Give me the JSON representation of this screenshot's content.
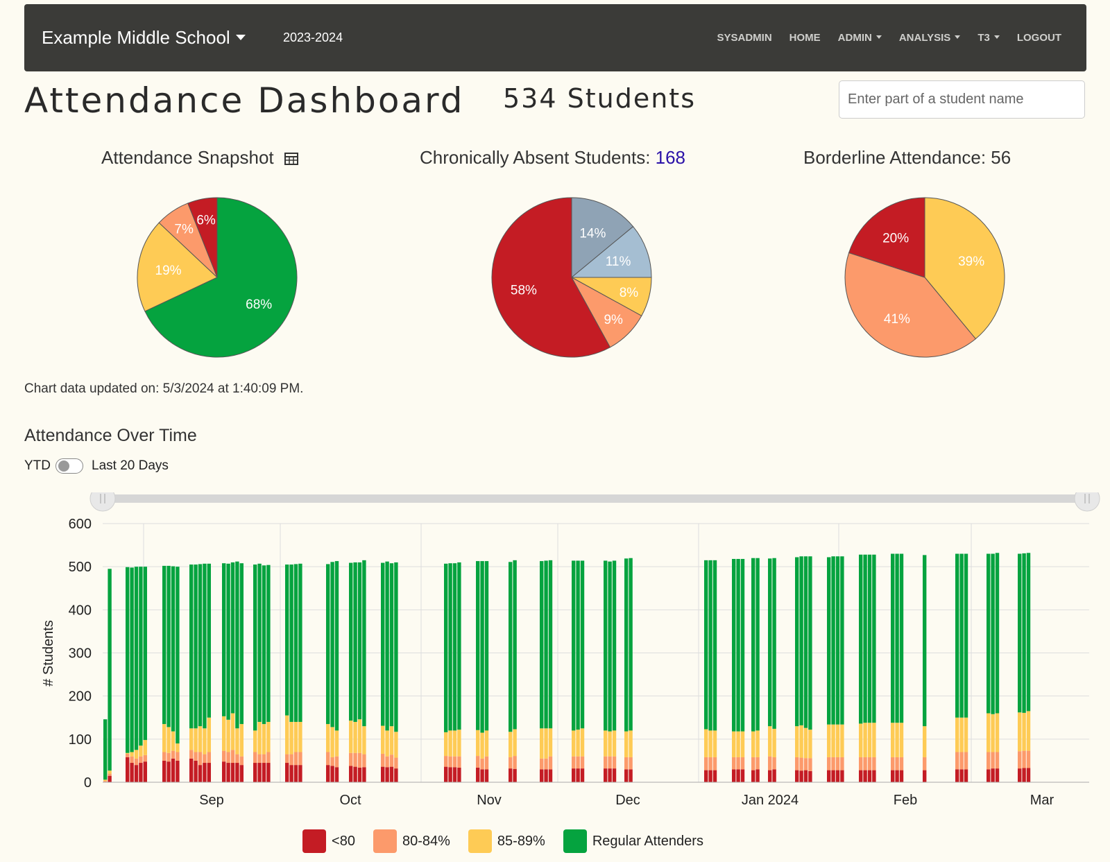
{
  "navbar": {
    "school": "Example Middle School",
    "year": "2023-2024",
    "links": {
      "sysadmin": "SYSADMIN",
      "home": "HOME",
      "admin": "ADMIN",
      "analysis": "ANALYSIS",
      "t3": "T3",
      "logout": "LOGOUT"
    }
  },
  "header": {
    "title": "Attendance Dashboard",
    "student_count": "534 Students",
    "search_placeholder": "Enter part of a student name"
  },
  "snapshot": {
    "title": "Attendance Snapshot",
    "icon": "table-icon"
  },
  "chronic": {
    "title": "Chronically Absent Students: ",
    "count": "168"
  },
  "borderline": {
    "title": "Borderline Attendance: 56"
  },
  "updated": "Chart data updated on: 5/3/2024 at 1:40:09 PM.",
  "over_time": {
    "title": "Attendance Over Time",
    "toggle_left": "YTD",
    "toggle_right": "Last 20 Days",
    "toggle_state": "YTD"
  },
  "colors": {
    "lt80": "#c41c24",
    "b80_84": "#fc9a6b",
    "b85_89": "#fecb55",
    "regular": "#05a33f",
    "grey_dark": "#8fa3b5",
    "grey_light": "#a5bed2",
    "accent": "#2a11a8"
  },
  "chart_data": [
    {
      "type": "pie",
      "title": "Attendance Snapshot",
      "slices": [
        {
          "label": "Regular Attenders",
          "value": 68,
          "label_text": "68%",
          "color": "#05a33f"
        },
        {
          "label": "85-89%",
          "value": 19,
          "label_text": "19%",
          "color": "#fecb55"
        },
        {
          "label": "80-84%",
          "value": 7,
          "label_text": "7%",
          "color": "#fc9a6b"
        },
        {
          "label": "<80",
          "value": 6,
          "label_text": "6%",
          "color": "#c41c24"
        }
      ]
    },
    {
      "type": "pie",
      "title": "Chronically Absent Students: 168",
      "slices": [
        {
          "value": 14,
          "label_text": "14%",
          "color": "#8fa3b5"
        },
        {
          "value": 11,
          "label_text": "11%",
          "color": "#a5bed2"
        },
        {
          "value": 8,
          "label_text": "8%",
          "color": "#fecb55"
        },
        {
          "value": 9,
          "label_text": "9%",
          "color": "#fc9a6b"
        },
        {
          "value": 58,
          "label_text": "58%",
          "color": "#c41c24"
        }
      ]
    },
    {
      "type": "pie",
      "title": "Borderline Attendance: 56",
      "slices": [
        {
          "value": 39,
          "label_text": "39%",
          "color": "#fecb55"
        },
        {
          "value": 41,
          "label_text": "41%",
          "color": "#fc9a6b"
        },
        {
          "value": 20,
          "label_text": "20%",
          "color": "#c41c24"
        }
      ]
    },
    {
      "type": "bar",
      "title": "Attendance Over Time",
      "ylabel": "# Students",
      "xlabel": "",
      "ylim": [
        0,
        600
      ],
      "yticks": [
        0,
        100,
        200,
        300,
        400,
        500,
        600
      ],
      "month_labels": [
        "Sep",
        "Oct",
        "Nov",
        "Dec",
        "Jan 2024",
        "Feb",
        "Mar"
      ],
      "stacked": true,
      "series": [
        {
          "name": "<80",
          "color": "#c41c24"
        },
        {
          "name": "80-84%",
          "color": "#fc9a6b"
        },
        {
          "name": "85-89%",
          "color": "#fecb55"
        },
        {
          "name": "Regular Attenders",
          "color": "#05a33f"
        }
      ],
      "weeks": [
        {
          "days": [
            [
              1,
              2,
              3,
              140
            ],
            [
              15,
              5,
              7,
              468
            ]
          ]
        },
        {
          "days": [
            [
              58,
              8,
              2,
              431
            ],
            [
              45,
              15,
              10,
              428
            ],
            [
              40,
              15,
              20,
              425
            ],
            [
              45,
              15,
              25,
              415
            ],
            [
              48,
              15,
              35,
              402
            ]
          ]
        },
        {
          "days": [
            [
              50,
              20,
              65,
              367
            ],
            [
              48,
              20,
              60,
              374
            ],
            [
              55,
              18,
              45,
              383
            ],
            [
              50,
              20,
              20,
              410
            ]
          ]
        },
        {
          "days": [
            [
              55,
              20,
              50,
              380
            ],
            [
              50,
              20,
              55,
              380
            ],
            [
              40,
              30,
              60,
              376
            ],
            [
              45,
              20,
              60,
              382
            ],
            [
              45,
              25,
              80,
              357
            ]
          ]
        },
        {
          "days": [
            [
              48,
              25,
              80,
              355
            ],
            [
              45,
              25,
              75,
              362
            ],
            [
              45,
              30,
              85,
              350
            ],
            [
              45,
              20,
              60,
              387
            ],
            [
              40,
              20,
              75,
              373
            ]
          ]
        },
        {
          "days": [
            [
              45,
              25,
              50,
              385
            ],
            [
              45,
              20,
              75,
              367
            ],
            [
              45,
              20,
              70,
              368
            ],
            [
              45,
              25,
              70,
              364
            ]
          ]
        },
        {
          "days": [
            [
              45,
              20,
              90,
              350
            ],
            [
              40,
              25,
              75,
              365
            ],
            [
              40,
              30,
              70,
              366
            ],
            [
              40,
              30,
              70,
              367
            ]
          ]
        },
        {
          "days": [
            [
              40,
              30,
              65,
              371
            ],
            [
              38,
              20,
              70,
              383
            ],
            [
              35,
              25,
              60,
              393
            ]
          ]
        },
        {
          "days": [
            [
              38,
              30,
              75,
              366
            ],
            [
              36,
              32,
              72,
              370
            ],
            [
              34,
              34,
              78,
              364
            ],
            [
              35,
              30,
              65,
              385
            ]
          ]
        },
        {
          "days": [
            [
              36,
              30,
              65,
              378
            ],
            [
              35,
              25,
              60,
              392
            ],
            [
              36,
              28,
              66,
              378
            ],
            [
              32,
              25,
              60,
              393
            ]
          ]
        },
        {
          "days": [
            [
              36,
              25,
              55,
              391
            ],
            [
              35,
              25,
              60,
              388
            ],
            [
              35,
              25,
              60,
              388
            ],
            [
              34,
              26,
              62,
              388
            ]
          ]
        },
        {
          "days": [
            [
              34,
              27,
              60,
              392
            ],
            [
              30,
              25,
              60,
              398
            ],
            [
              30,
              30,
              60,
              393
            ]
          ]
        },
        {
          "days": [
            [
              32,
              26,
              59,
              394
            ],
            [
              31,
              30,
              62,
              392
            ]
          ]
        },
        {
          "days": [
            [
              30,
              25,
              70,
              388
            ],
            [
              30,
              25,
              70,
              389
            ],
            [
              30,
              30,
              65,
              390
            ]
          ]
        },
        {
          "days": [
            [
              32,
              28,
              60,
              394
            ],
            [
              32,
              28,
              62,
              392
            ],
            [
              32,
              28,
              65,
              389
            ]
          ]
        },
        {
          "days": [
            [
              32,
              28,
              60,
              394
            ],
            [
              32,
              28,
              58,
              394
            ],
            [
              32,
              28,
              60,
              394
            ]
          ]
        },
        {
          "days": [
            [
              30,
              28,
              60,
              401
            ],
            [
              30,
              28,
              62,
              400
            ]
          ]
        },
        {
          "days": [
            [
              28,
              30,
              65,
              392
            ],
            [
              28,
              30,
              62,
              395
            ],
            [
              28,
              30,
              62,
              395
            ]
          ]
        },
        {
          "days": [
            [
              30,
              28,
              60,
              400
            ],
            [
              30,
              28,
              60,
              400
            ],
            [
              30,
              28,
              60,
              400
            ]
          ]
        },
        {
          "days": [
            [
              28,
              30,
              60,
              402
            ],
            [
              30,
              28,
              62,
              400
            ]
          ]
        },
        {
          "days": [
            [
              28,
              32,
              70,
              389
            ],
            [
              30,
              28,
              66,
              396
            ]
          ]
        },
        {
          "days": [
            [
              28,
              30,
              72,
              392
            ],
            [
              27,
              30,
              75,
              392
            ],
            [
              28,
              28,
              70,
              398
            ],
            [
              26,
              30,
              66,
              402
            ]
          ]
        },
        {
          "days": [
            [
              28,
              30,
              76,
              388
            ],
            [
              28,
              30,
              76,
              390
            ],
            [
              28,
              30,
              76,
              390
            ],
            [
              28,
              30,
              76,
              390
            ]
          ]
        },
        {
          "days": [
            [
              28,
              30,
              78,
              392
            ],
            [
              28,
              30,
              80,
              390
            ],
            [
              28,
              30,
              80,
              390
            ],
            [
              28,
              30,
              80,
              390
            ]
          ]
        },
        {
          "days": [
            [
              28,
              30,
              80,
              392
            ],
            [
              28,
              30,
              80,
              392
            ],
            [
              28,
              30,
              80,
              392
            ]
          ]
        },
        {
          "days": [
            [
              28,
              30,
              72,
              397
            ]
          ]
        },
        {
          "days": [
            [
              30,
              40,
              80,
              380
            ],
            [
              30,
              40,
              80,
              380
            ],
            [
              30,
              40,
              80,
              380
            ]
          ]
        },
        {
          "days": [
            [
              30,
              40,
              90,
              370
            ],
            [
              32,
              38,
              88,
              372
            ],
            [
              32,
              38,
              90,
              372
            ]
          ]
        },
        {
          "days": [
            [
              32,
              40,
              90,
              368
            ],
            [
              33,
              40,
              88,
              370
            ],
            [
              33,
              40,
              92,
              367
            ]
          ]
        }
      ]
    }
  ],
  "legend": {
    "lt80": "<80",
    "b80": "80-84%",
    "b85": "85-89%",
    "regular": "Regular Attenders"
  }
}
